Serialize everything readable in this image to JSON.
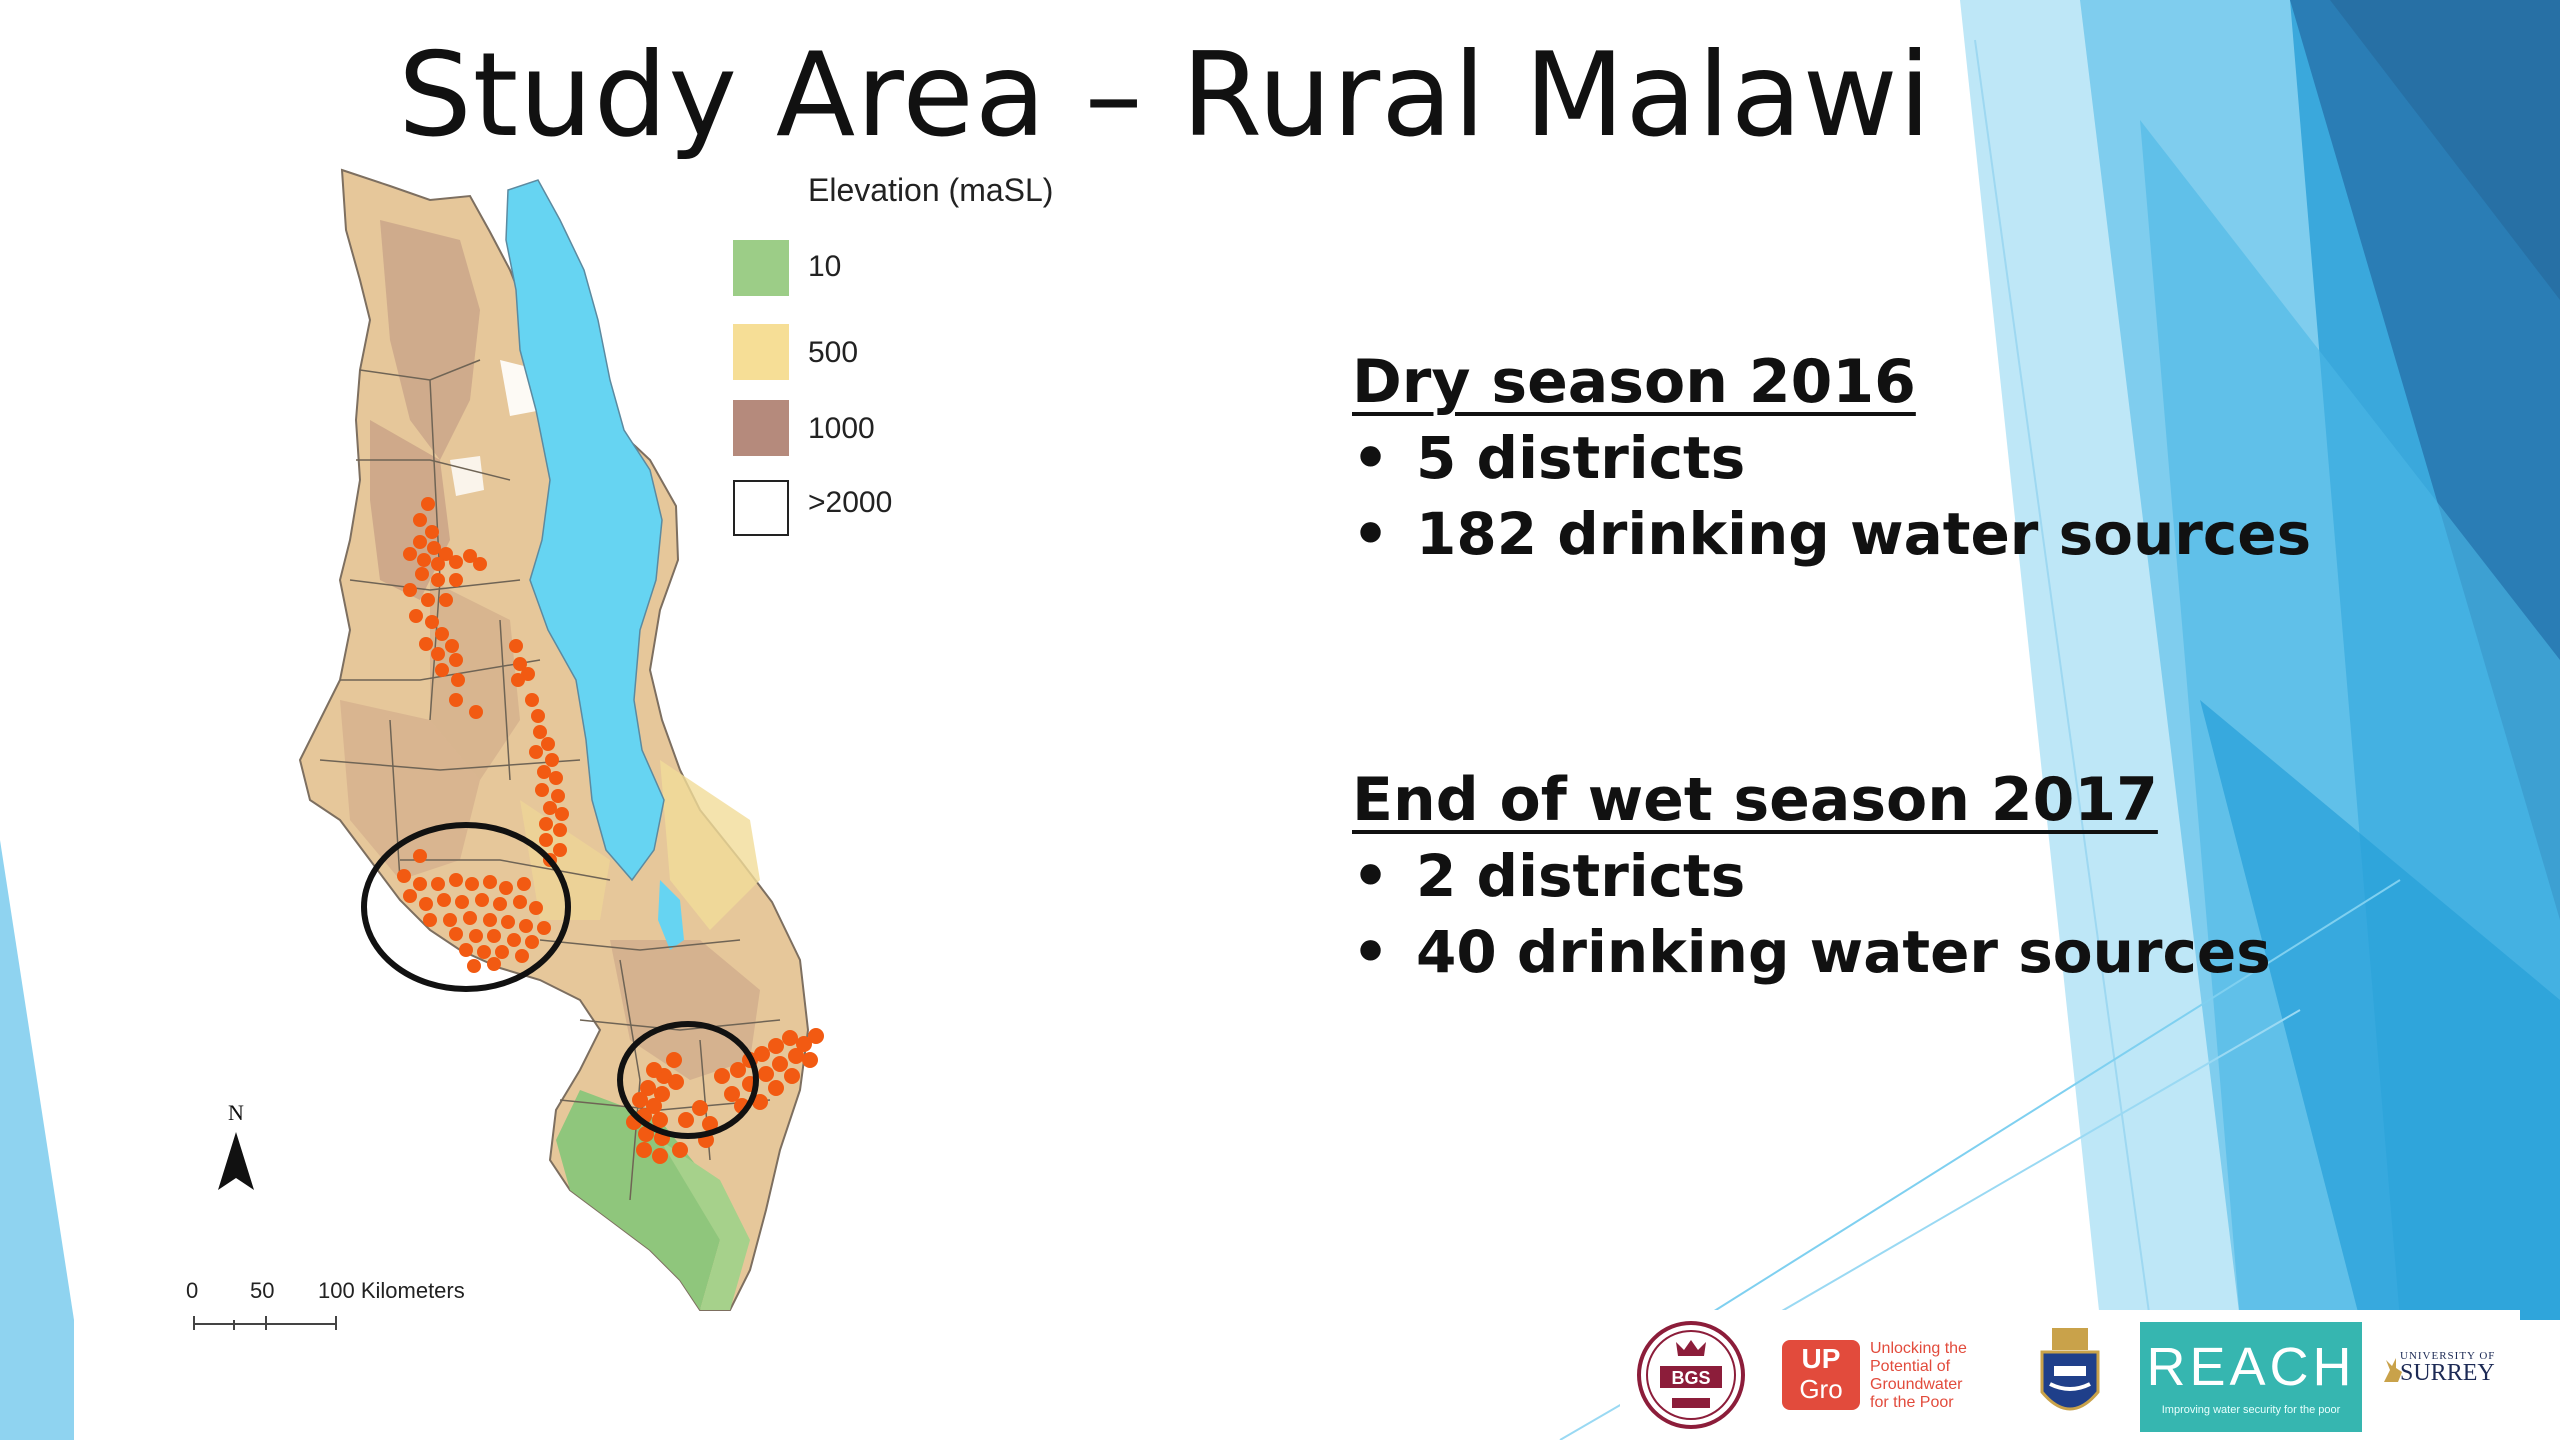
{
  "slide": {
    "title": "Study Area – Rural Malawi"
  },
  "legend": {
    "title": "Elevation (maSL)",
    "items": [
      {
        "label": "10",
        "color": "#9ccd87"
      },
      {
        "label": "500",
        "color": "#f6de96"
      },
      {
        "label": "1000",
        "color": "#b58a7c"
      },
      {
        "label": ">2000",
        "color": "#ffffff"
      }
    ]
  },
  "map": {
    "north_label": "N",
    "scale_labels": [
      "0",
      "50",
      "100 Kilometers"
    ],
    "lake_color": "#66d4f2",
    "point_color": "#f25a12"
  },
  "sections": [
    {
      "heading": "Dry season 2016",
      "bullets": [
        "5 districts",
        "182 drinking water sources"
      ]
    },
    {
      "heading": "End of wet season 2017",
      "bullets": [
        "2 districts",
        "40 drinking water sources"
      ]
    }
  ],
  "logos": {
    "bgs": "BGS",
    "upgro_mark": [
      "UP",
      "Gro"
    ],
    "upgro_text": [
      "Unlocking the",
      "Potential of",
      "Groundwater",
      "for the Poor"
    ],
    "reach": "REACH",
    "reach_tagline": "Improving water security for the poor",
    "surrey_small": "UNIVERSITY OF",
    "surrey_big": "SURREY"
  }
}
